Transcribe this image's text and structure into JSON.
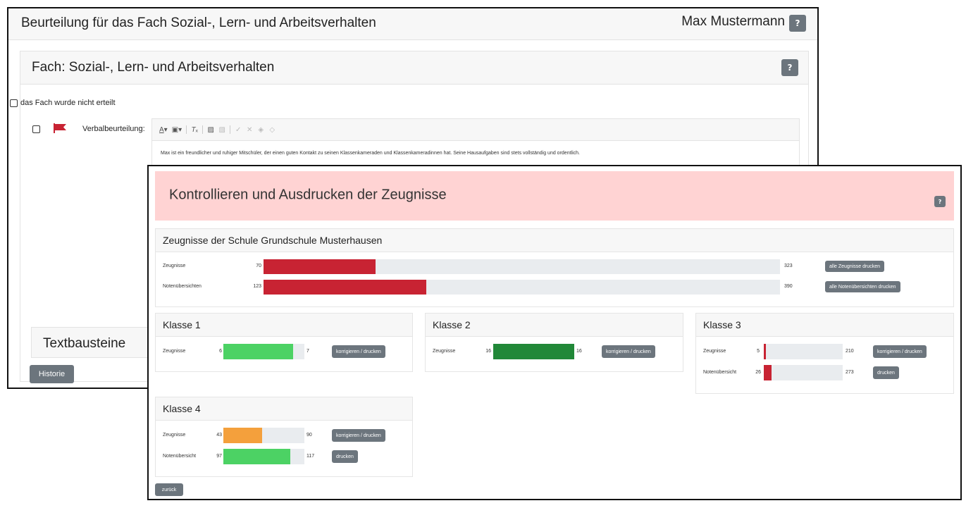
{
  "back_window": {
    "title": "Beurteilung für das Fach Sozial-, Lern- und Arbeitsverhalten",
    "user": "Max Mustermann",
    "help_label": "?",
    "subject_title": "Fach: Sozial-, Lern- und Arbeitsverhalten",
    "not_given_label": "das Fach wurde nicht erteilt",
    "verbal_label": "Verbalbeurteilung:",
    "toolbar_icons": [
      "font-color-icon",
      "background-color-icon",
      "clear-format-icon",
      "paste-text-icon",
      "paste-word-icon",
      "spellcheck-icon",
      "remove-icon",
      "accept-icon",
      "reject-icon"
    ],
    "editor_text": "Max ist ein freundlicher und ruhiger Mitschüler, der einen guten Kontakt zu seinen Klassenkameraden und Klassenkameradinnen hat. Seine Hausaufgaben sind stets vollständig und ordentlich.",
    "textbausteine_label": "Textbausteine",
    "historie_label": "Historie"
  },
  "front_window": {
    "title": "Kontrollieren und Ausdrucken der Zeugnisse",
    "help_label": "?",
    "school": {
      "title": "Zeugnisse der Schule Grundschule Musterhausen",
      "rows": [
        {
          "label": "Zeugnisse",
          "done": "70",
          "total": "323",
          "fraction": 0.2167,
          "color": "#c82333",
          "button": "alle Zeugnisse drucken"
        },
        {
          "label": "Notenübersichten",
          "done": "123",
          "total": "390",
          "fraction": 0.3154,
          "color": "#c82333",
          "button": "alle Notenübersichten drucken"
        }
      ]
    },
    "classes": [
      {
        "title": "Klasse 1",
        "rows": [
          {
            "label": "Zeugnisse",
            "done": "6",
            "total": "7",
            "fraction": 0.857,
            "color": "#4cd264",
            "button": "korrigieren / drucken"
          }
        ]
      },
      {
        "title": "Klasse 2",
        "rows": [
          {
            "label": "Zeugnisse",
            "done": "16",
            "total": "16",
            "fraction": 1.0,
            "color": "#218838",
            "button": "korrigieren / drucken"
          }
        ]
      },
      {
        "title": "Klasse 3",
        "rows": [
          {
            "label": "Zeugnisse",
            "done": "5",
            "total": "210",
            "fraction": 0.024,
            "color": "#c82333",
            "button": "korrigieren / drucken"
          },
          {
            "label": "Notenübersicht",
            "done": "26",
            "total": "273",
            "fraction": 0.095,
            "color": "#c82333",
            "button": "drucken"
          }
        ]
      },
      {
        "title": "Klasse 4",
        "rows": [
          {
            "label": "Zeugnisse",
            "done": "43",
            "total": "90",
            "fraction": 0.478,
            "color": "#f4a03c",
            "button": "korrigieren / drucken"
          },
          {
            "label": "Notenübersicht",
            "done": "97",
            "total": "117",
            "fraction": 0.829,
            "color": "#4cd264",
            "button": "drucken"
          }
        ]
      }
    ],
    "back_button": "zurück"
  }
}
